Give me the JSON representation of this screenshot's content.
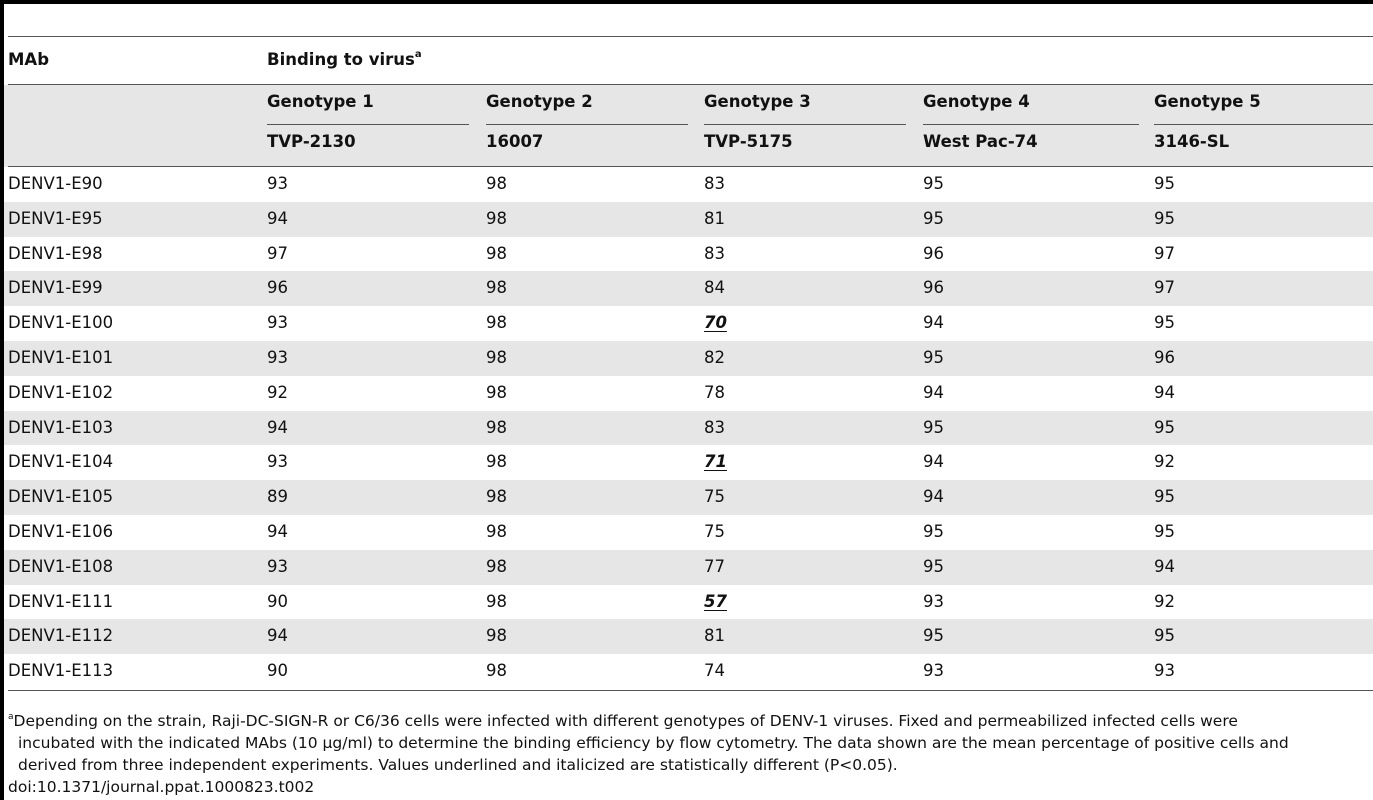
{
  "table": {
    "col_mab": "MAb",
    "group_header": "Binding to virus",
    "group_footnote_mark": "a",
    "genotypes": [
      "Genotype 1",
      "Genotype 2",
      "Genotype 3",
      "Genotype 4",
      "Genotype 5"
    ],
    "strains": [
      "TVP-2130",
      "16007",
      "TVP-5175",
      "West Pac-74",
      "3146-SL"
    ],
    "rows": [
      {
        "mab": "DENV1-E90",
        "v": [
          "93",
          "98",
          "83",
          "95",
          "95"
        ],
        "sig": [
          false,
          false,
          false,
          false,
          false
        ]
      },
      {
        "mab": "DENV1-E95",
        "v": [
          "94",
          "98",
          "81",
          "95",
          "95"
        ],
        "sig": [
          false,
          false,
          false,
          false,
          false
        ]
      },
      {
        "mab": "DENV1-E98",
        "v": [
          "97",
          "98",
          "83",
          "96",
          "97"
        ],
        "sig": [
          false,
          false,
          false,
          false,
          false
        ]
      },
      {
        "mab": "DENV1-E99",
        "v": [
          "96",
          "98",
          "84",
          "96",
          "97"
        ],
        "sig": [
          false,
          false,
          false,
          false,
          false
        ]
      },
      {
        "mab": "DENV1-E100",
        "v": [
          "93",
          "98",
          "70",
          "94",
          "95"
        ],
        "sig": [
          false,
          false,
          true,
          false,
          false
        ]
      },
      {
        "mab": "DENV1-E101",
        "v": [
          "93",
          "98",
          "82",
          "95",
          "96"
        ],
        "sig": [
          false,
          false,
          false,
          false,
          false
        ]
      },
      {
        "mab": "DENV1-E102",
        "v": [
          "92",
          "98",
          "78",
          "94",
          "94"
        ],
        "sig": [
          false,
          false,
          false,
          false,
          false
        ]
      },
      {
        "mab": "DENV1-E103",
        "v": [
          "94",
          "98",
          "83",
          "95",
          "95"
        ],
        "sig": [
          false,
          false,
          false,
          false,
          false
        ]
      },
      {
        "mab": "DENV1-E104",
        "v": [
          "93",
          "98",
          "71",
          "94",
          "92"
        ],
        "sig": [
          false,
          false,
          true,
          false,
          false
        ]
      },
      {
        "mab": "DENV1-E105",
        "v": [
          "89",
          "98",
          "75",
          "94",
          "95"
        ],
        "sig": [
          false,
          false,
          false,
          false,
          false
        ]
      },
      {
        "mab": "DENV1-E106",
        "v": [
          "94",
          "98",
          "75",
          "95",
          "95"
        ],
        "sig": [
          false,
          false,
          false,
          false,
          false
        ]
      },
      {
        "mab": "DENV1-E108",
        "v": [
          "93",
          "98",
          "77",
          "95",
          "94"
        ],
        "sig": [
          false,
          false,
          false,
          false,
          false
        ]
      },
      {
        "mab": "DENV1-E111",
        "v": [
          "90",
          "98",
          "57",
          "93",
          "92"
        ],
        "sig": [
          false,
          false,
          true,
          false,
          false
        ]
      },
      {
        "mab": "DENV1-E112",
        "v": [
          "94",
          "98",
          "81",
          "95",
          "95"
        ],
        "sig": [
          false,
          false,
          false,
          false,
          false
        ]
      },
      {
        "mab": "DENV1-E113",
        "v": [
          "90",
          "98",
          "74",
          "93",
          "93"
        ],
        "sig": [
          false,
          false,
          false,
          false,
          false
        ]
      }
    ]
  },
  "footnote": {
    "mark": "a",
    "line1": "Depending on the strain, Raji-DC-SIGN-R or C6/36 cells were infected with different genotypes of DENV-1 viruses. Fixed and permeabilized infected cells were",
    "line2": "incubated with the indicated MAbs (10 μg/ml) to determine the binding efficiency by flow cytometry. The data shown are the mean percentage of positive cells and",
    "line3": "derived from three independent experiments. Values underlined and italicized are statistically different (P<0.05).",
    "doi": "doi:10.1371/journal.ppat.1000823.t002"
  }
}
